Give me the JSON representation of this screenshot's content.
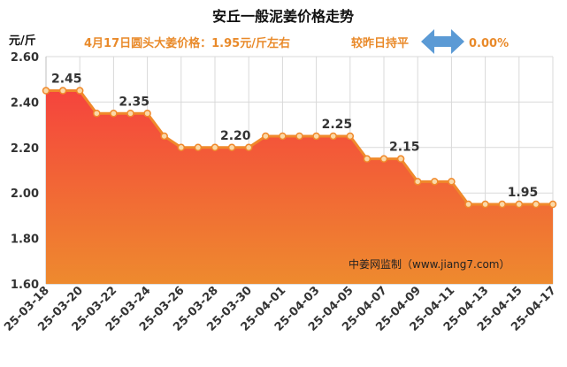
{
  "chart_data": {
    "type": "area",
    "title": "安丘一般泥姜价格走势",
    "subtitle": "4月17日圆头大姜价格：1.95元/斤左右",
    "change_label": "较昨日持平",
    "change_value": "0.00%",
    "ylabel": "元/斤",
    "ylim": [
      1.6,
      2.6
    ],
    "yticks": [
      "1.60",
      "1.80",
      "2.00",
      "2.20",
      "2.40",
      "2.60"
    ],
    "ytick_values": [
      1.6,
      1.8,
      2.0,
      2.2,
      2.4,
      2.6
    ],
    "x": [
      "25-03-18",
      "25-03-19",
      "25-03-20",
      "25-03-21",
      "25-03-22",
      "25-03-23",
      "25-03-24",
      "25-03-25",
      "25-03-26",
      "25-03-27",
      "25-03-28",
      "25-03-29",
      "25-03-30",
      "25-03-31",
      "25-04-01",
      "25-04-02",
      "25-04-03",
      "25-04-04",
      "25-04-05",
      "25-04-06",
      "25-04-07",
      "25-04-08",
      "25-04-09",
      "25-04-10",
      "25-04-11",
      "25-04-12",
      "25-04-13",
      "25-04-14",
      "25-04-15",
      "25-04-16",
      "25-04-17"
    ],
    "xtick_labels": [
      "25-03-18",
      "25-03-20",
      "25-03-22",
      "25-03-24",
      "25-03-26",
      "25-03-28",
      "25-03-30",
      "25-04-01",
      "25-04-03",
      "25-04-05",
      "25-04-07",
      "25-04-09",
      "25-04-11",
      "25-04-13",
      "25-04-15",
      "25-04-17"
    ],
    "series": [
      {
        "values": [
          2.45,
          2.45,
          2.45,
          2.35,
          2.35,
          2.35,
          2.35,
          2.25,
          2.2,
          2.2,
          2.2,
          2.2,
          2.2,
          2.25,
          2.25,
          2.25,
          2.25,
          2.25,
          2.25,
          2.15,
          2.15,
          2.15,
          2.05,
          2.05,
          2.05,
          1.95,
          1.95,
          1.95,
          1.95,
          1.95,
          1.95
        ]
      }
    ],
    "data_labels": [
      {
        "x": "25-03-18",
        "value": "2.45"
      },
      {
        "x": "25-03-22",
        "value": "2.35"
      },
      {
        "x": "25-03-28",
        "value": "2.20"
      },
      {
        "x": "25-04-03",
        "value": "2.25"
      },
      {
        "x": "25-04-07",
        "value": "2.15"
      },
      {
        "x": "25-04-14",
        "value": "1.95"
      }
    ],
    "watermark": "中姜网监制（www.jiang7.com）",
    "grid": true,
    "colors": {
      "title": "#111111",
      "subtitle": "#e98a2a",
      "line": "#f0892b",
      "marker_fill": "#fbd9a8",
      "area_top": "#f5443d",
      "area_bottom": "#ee8a2e",
      "arrow": "#5b9ad5",
      "grid": "#d9d9d9",
      "axis_text": "#333333"
    }
  }
}
